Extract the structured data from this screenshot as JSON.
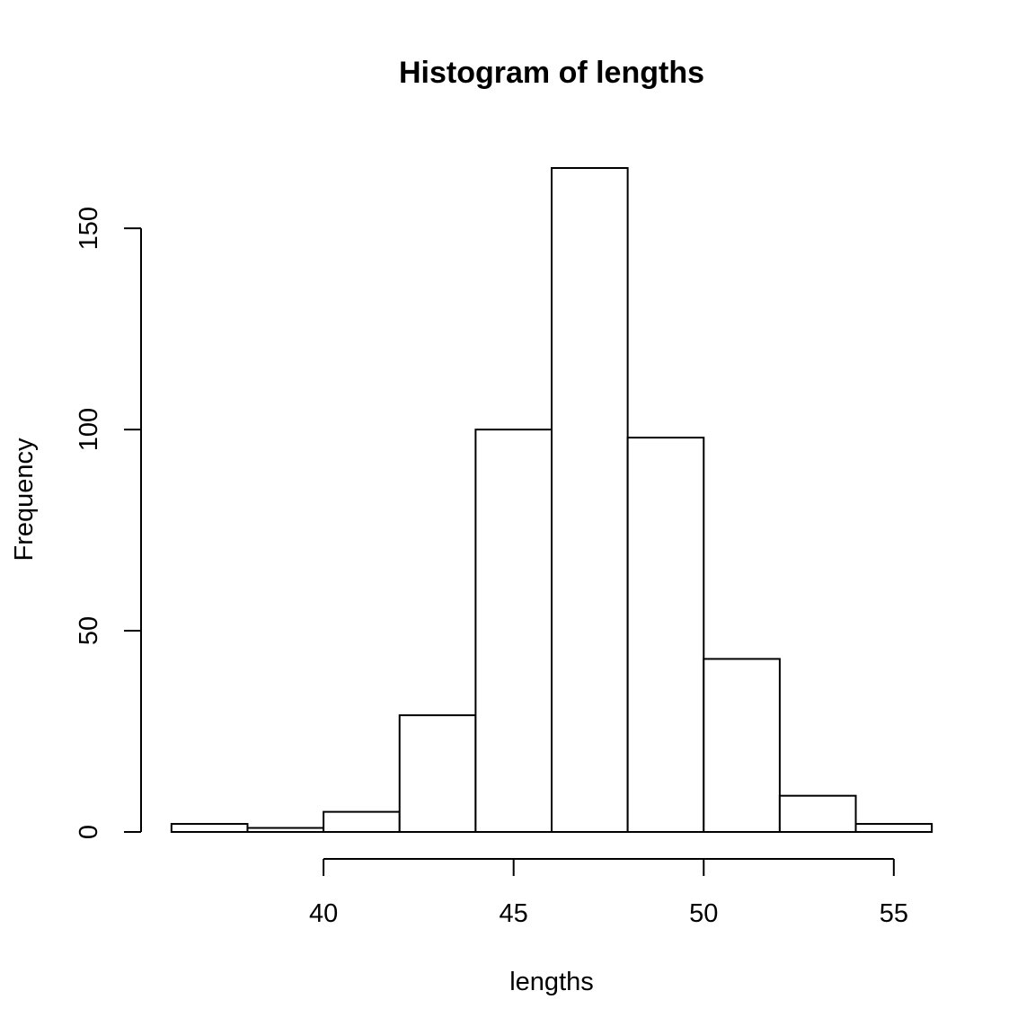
{
  "chart_data": {
    "type": "bar",
    "title": "Histogram of lengths",
    "xlabel": "lengths",
    "ylabel": "Frequency",
    "bin_edges": [
      36,
      38,
      40,
      42,
      44,
      46,
      48,
      50,
      52,
      54,
      56
    ],
    "values": [
      2,
      1,
      5,
      29,
      100,
      165,
      98,
      43,
      9,
      2
    ],
    "x_ticks": [
      40,
      45,
      50,
      55
    ],
    "y_ticks": [
      0,
      50,
      100,
      150
    ],
    "xlim": [
      35.2,
      56.8
    ],
    "ylim": [
      0,
      165
    ],
    "grid": false,
    "legend": "none",
    "bar_fill": "#ffffff",
    "bar_stroke": "#000000"
  }
}
